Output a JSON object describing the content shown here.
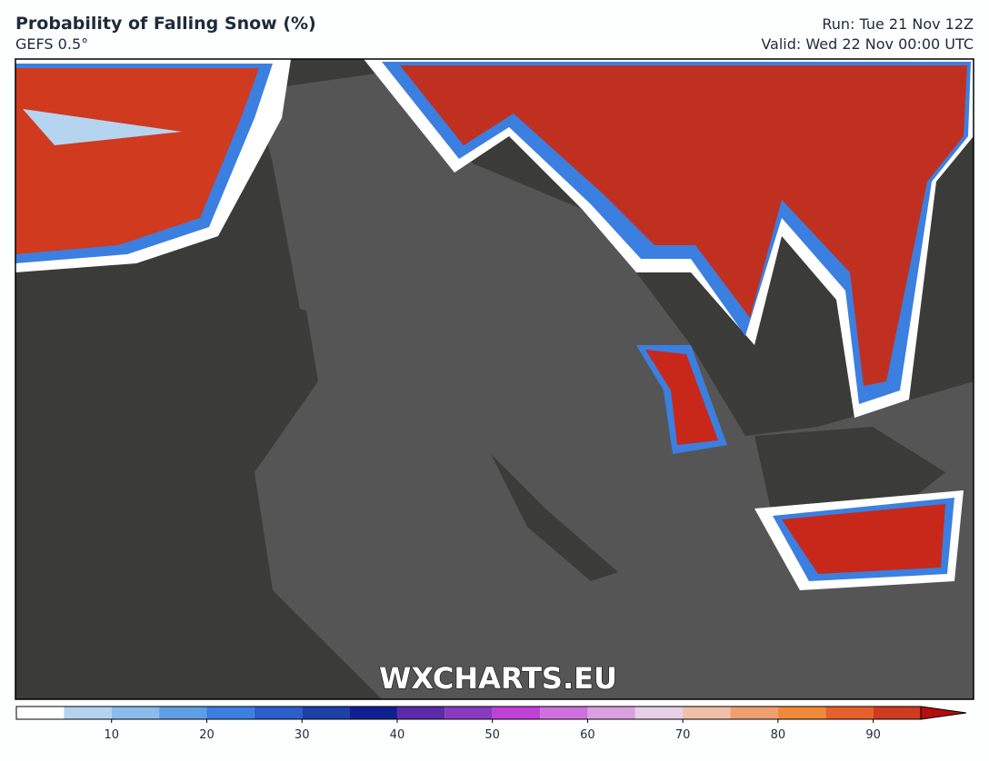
{
  "header": {
    "title": "Probability of Falling Snow (%)",
    "subtitle": "GEFS 0.5°",
    "run": "Run: Tue 21 Nov 12Z",
    "valid": "Valid: Wed 22 Nov 00:00 UTC"
  },
  "watermark": "WXCHARTS.EU",
  "colorbar": {
    "levels": [
      0,
      5,
      10,
      15,
      20,
      25,
      30,
      35,
      40,
      45,
      50,
      55,
      60,
      65,
      70,
      75,
      80,
      85,
      90,
      95
    ],
    "colors": [
      "#ffffff",
      "#b5d4ef",
      "#8cbcec",
      "#5e9ee6",
      "#3b7fe0",
      "#2a5fcc",
      "#1c3fa8",
      "#0f1f8f",
      "#5b2aa8",
      "#8a3ac0",
      "#c040d8",
      "#d070e0",
      "#dca0e0",
      "#e8d0e8",
      "#f0c0a8",
      "#f0a070",
      "#f08a3a",
      "#e8602a",
      "#d03a1e"
    ],
    "over_color": "#b40e0e",
    "ticks": [
      10,
      20,
      30,
      40,
      50,
      60,
      70,
      80,
      90
    ]
  }
}
